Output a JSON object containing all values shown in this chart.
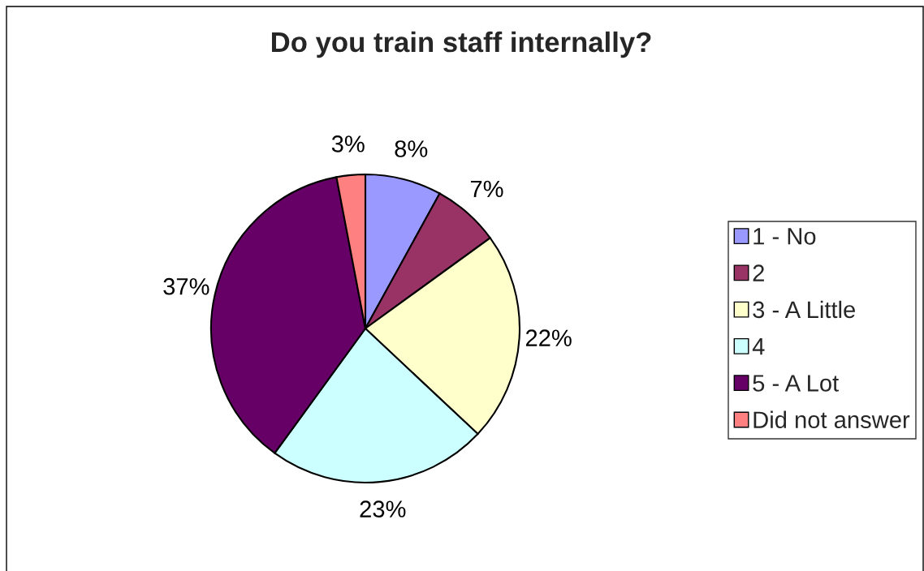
{
  "chart_data": {
    "type": "pie",
    "title": "Do you train staff internally?",
    "categories": [
      "1 - No",
      "2",
      "3 - A Little",
      "4",
      "5 - A Lot",
      "Did not answer"
    ],
    "values": [
      8,
      7,
      22,
      23,
      37,
      3
    ],
    "colors": [
      "#9999ff",
      "#993366",
      "#ffffcc",
      "#ccffff",
      "#660066",
      "#ff8080"
    ],
    "value_labels": [
      "8%",
      "7%",
      "22%",
      "23%",
      "37%",
      "3%"
    ],
    "legend": "right"
  }
}
